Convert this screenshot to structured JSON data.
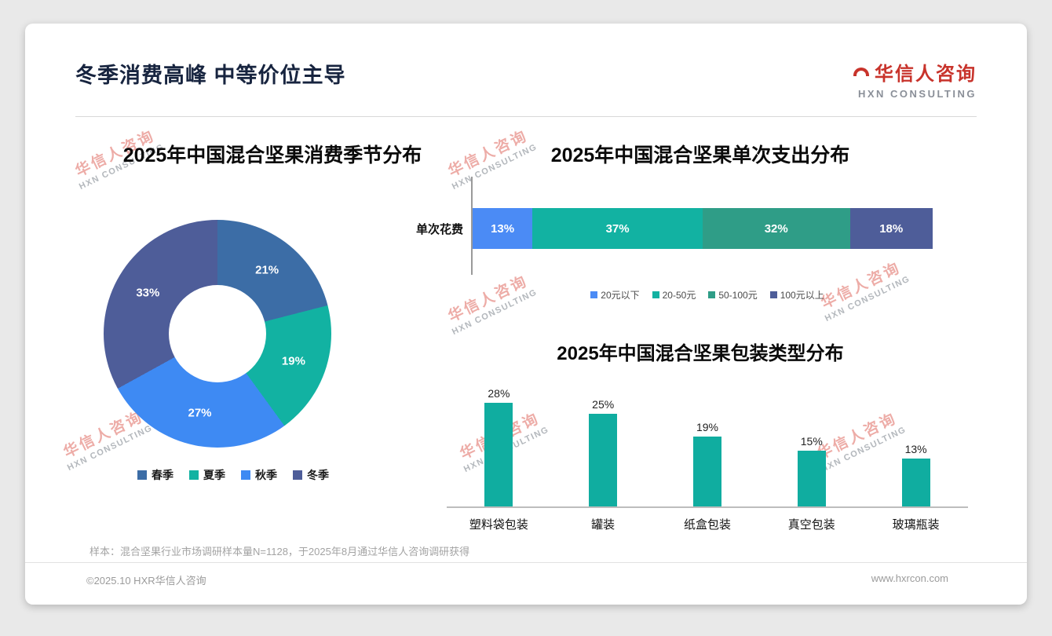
{
  "page": {
    "title": "冬季消费高峰 中等价位主导",
    "logo": {
      "cn": "华信人咨询",
      "en": "HXN CONSULTING"
    },
    "watermark": {
      "cn": "华信人咨询",
      "en": "HXN CONSULTING"
    },
    "footnote": "样本：混合坚果行业市场调研样本量N=1128，于2025年8月通过华信人咨询调研获得",
    "footer": {
      "left": "©2025.10 HXR华信人咨询",
      "right": "www.hxrcon.com"
    }
  },
  "chart_data": [
    {
      "id": "season",
      "type": "pie",
      "subtype": "donut",
      "title": "2025年中国混合坚果消费季节分布",
      "categories": [
        "春季",
        "夏季",
        "秋季",
        "冬季"
      ],
      "values": [
        21,
        19,
        27,
        33
      ],
      "colors": [
        "#3c6da6",
        "#12b2a2",
        "#3e8af3",
        "#4e5d99"
      ],
      "unit": "%",
      "legend_position": "bottom"
    },
    {
      "id": "spend",
      "type": "bar",
      "subtype": "stacked-horizontal",
      "title": "2025年中国混合坚果单次支出分布",
      "row_label": "单次花费",
      "categories": [
        "20元以下",
        "20-50元",
        "50-100元",
        "100元以上"
      ],
      "values": [
        13,
        37,
        32,
        18
      ],
      "colors": [
        "#4b8bf5",
        "#12b2a2",
        "#2f9d87",
        "#4e5d99"
      ],
      "unit": "%",
      "legend_position": "bottom"
    },
    {
      "id": "packaging",
      "type": "bar",
      "title": "2025年中国混合坚果包装类型分布",
      "categories": [
        "塑料袋包装",
        "罐装",
        "纸盒包装",
        "真空包装",
        "玻璃瓶装"
      ],
      "values": [
        28,
        25,
        19,
        15,
        13
      ],
      "bar_color": "#10ada0",
      "unit": "%"
    }
  ]
}
